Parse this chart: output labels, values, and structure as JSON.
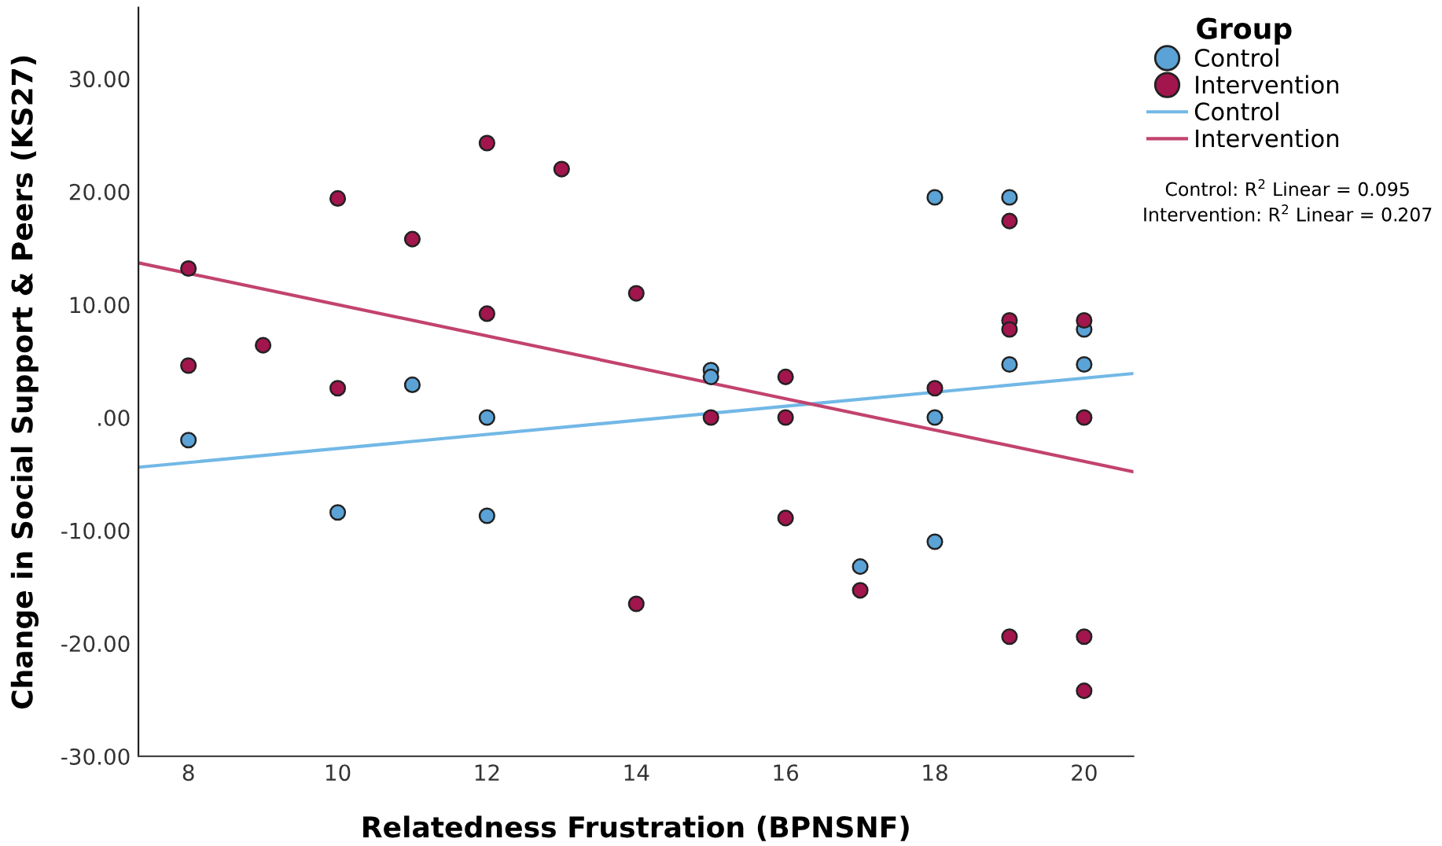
{
  "chart_data": {
    "type": "scatter",
    "xlabel": "Relatedness Frustration (BPNSNF)",
    "ylabel": "Change in Social Support & Peers (KS27)",
    "legend_title": "Group",
    "legend": "top right",
    "grid": false,
    "marker": "circle",
    "xlim": [
      7.33,
      20.66
    ],
    "xticks": [
      8,
      10,
      12,
      14,
      16,
      18,
      20
    ],
    "ylim": [
      -30,
      36.3
    ],
    "yticks": [
      {
        "value": -30,
        "label": "-30.00"
      },
      {
        "value": -20,
        "label": "-20.00"
      },
      {
        "value": -10,
        "label": "-10.00"
      },
      {
        "value": 0,
        "label": ".00"
      },
      {
        "value": 10,
        "label": "10.00"
      },
      {
        "value": 20,
        "label": "20.00"
      },
      {
        "value": 30,
        "label": "30.00"
      }
    ],
    "series": [
      {
        "name": "Control",
        "color": "#5ba3d6",
        "x": [
          8,
          10,
          11,
          12,
          12,
          15,
          15,
          17,
          18,
          18,
          18,
          19,
          19,
          20,
          20
        ],
        "values": [
          -2.0,
          -8.4,
          2.9,
          0,
          -8.7,
          4.2,
          3.6,
          -13.2,
          19.5,
          0,
          -11.0,
          19.5,
          4.7,
          7.8,
          4.7
        ]
      },
      {
        "name": "Intervention",
        "color": "#a3154d",
        "x": [
          8,
          8,
          9,
          10,
          10,
          11,
          12,
          12,
          13,
          14,
          14,
          15,
          16,
          16,
          16,
          17,
          18,
          19,
          19,
          19,
          19,
          20,
          20,
          20,
          20
        ],
        "values": [
          13.2,
          4.6,
          6.4,
          19.4,
          2.6,
          15.8,
          24.3,
          9.2,
          22.0,
          11.0,
          -16.5,
          0,
          3.6,
          0,
          -8.9,
          -15.3,
          2.6,
          17.4,
          8.6,
          7.8,
          -19.4,
          8.6,
          0,
          -19.4,
          -24.2
        ]
      },
      {
        "name": "Control",
        "type": "line",
        "color": "#72b8e6",
        "marker": "none",
        "x": [
          7.33,
          20.66
        ],
        "values": [
          -4.4,
          3.9
        ]
      },
      {
        "name": "Intervention",
        "type": "line",
        "color": "#c2436e",
        "marker": "none",
        "x": [
          7.33,
          20.66
        ],
        "values": [
          13.7,
          -4.8
        ]
      }
    ],
    "annotations": [
      "Control: R$^{2}$ Linear = 0.095",
      "Intervention: R$^{2}$ Linear = 0.207"
    ]
  }
}
